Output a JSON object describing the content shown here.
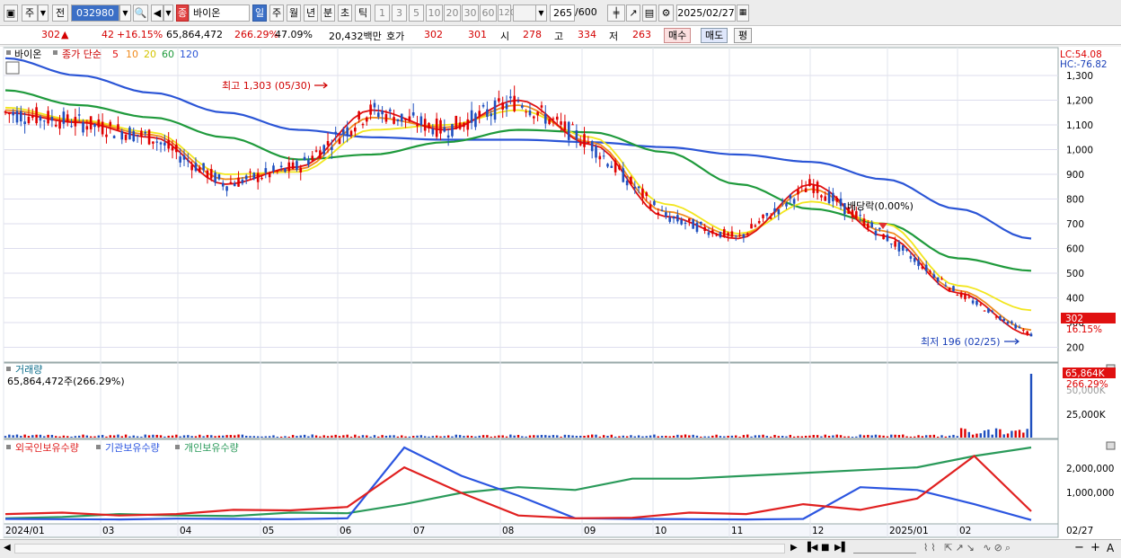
{
  "toolbar": {
    "market_type": "주",
    "prev_label": "전",
    "code": "032980",
    "name_badge": "종",
    "name": "바이온",
    "period_day": "일",
    "period_week": "주",
    "period_month": "월",
    "period_year": "년",
    "period_minute": "분",
    "period_second": "초",
    "period_tick": "틱",
    "intervals": [
      "1",
      "3",
      "5",
      "10",
      "20",
      "30",
      "60",
      "120"
    ],
    "count": "265",
    "count_total": "/600",
    "date": "2025/02/27"
  },
  "infobar": {
    "price": "302",
    "change_arrow": "▲",
    "change": "42",
    "change_pct": "+16.15%",
    "volume": "65,864,472",
    "volume_ratio": "266.29%",
    "turnover": "47.09%",
    "amount": "20,432백만",
    "quote_label": "호가",
    "quote_ask": "302",
    "quote_bid": "301",
    "open_label": "시",
    "open": "278",
    "high_label": "고",
    "high": "334",
    "low_label": "저",
    "low": "263",
    "buy_label": "매수",
    "sell_label": "매도",
    "eval_label": "평"
  },
  "price_panel": {
    "name": "바이온",
    "ma_label": "종가 단순",
    "ma_periods": [
      "5",
      "10",
      "20",
      "60",
      "120"
    ],
    "lc_label": "LC:54.08",
    "hc_label": "HC:-76.82",
    "high_annotation": "최고 1,303 (05/30)",
    "low_annotation": "최저 196 (02/25)",
    "dividend_annotation": "배당락(0.00%)",
    "current_price_label": "302",
    "current_pct_label": "16.15%"
  },
  "volume_panel": {
    "title": "거래량",
    "value_label": "65,864,472주(266.29%)",
    "current_label": "65,864K",
    "current_pct": "266.29%",
    "hidden_label": "50,000K",
    "tick_label": "25,000K"
  },
  "holdings_panel": {
    "series_labels": [
      "외국인보유수량",
      "기관보유수량",
      "개인보유수량"
    ],
    "ticks": [
      "2,000,000",
      "1,000,000"
    ]
  },
  "date_axis": {
    "labels": [
      "2024/01",
      "03",
      "04",
      "05",
      "06",
      "07",
      "08",
      "09",
      "10",
      "11",
      "12",
      "2025/01",
      "02"
    ],
    "end_label": "02/27"
  },
  "colors": {
    "up": "#e00000",
    "down": "#1f4fbf",
    "ma5": "#e01010",
    "ma10": "#f08a1c",
    "ma20": "#f2e61e",
    "ma60": "#1f9a3c",
    "ma120": "#2b55d6",
    "foreign": "#e02020",
    "institution": "#2b55e0",
    "individual": "#2a9a5a"
  },
  "chart_data": {
    "type": "line",
    "title": "바이온",
    "x_range": [
      "2024/01",
      "2025/02/27"
    ],
    "ylim": [
      180,
      1380
    ],
    "price_ticks": [
      200,
      300,
      400,
      500,
      600,
      700,
      800,
      900,
      1000,
      1100,
      1200,
      1300
    ],
    "series": [
      {
        "name": "5",
        "x": [
          "2024/01",
          "2024/02",
          "2024/03",
          "2024/04",
          "2024/05",
          "2024/06",
          "2024/07",
          "2024/08",
          "2024/09",
          "2024/10",
          "2024/11",
          "2024/12",
          "2025/01",
          "2025/02",
          "2025/02/27"
        ],
        "values": [
          1150,
          1110,
          1050,
          860,
          930,
          1160,
          1080,
          1200,
          1020,
          730,
          640,
          860,
          650,
          420,
          250
        ]
      },
      {
        "name": "10",
        "x": [
          "2024/01",
          "2024/02",
          "2024/03",
          "2024/04",
          "2024/05",
          "2024/06",
          "2024/07",
          "2024/08",
          "2024/09",
          "2024/10",
          "2024/11",
          "2024/12",
          "2025/01",
          "2025/02",
          "2025/02/27"
        ],
        "values": [
          1160,
          1115,
          1060,
          880,
          920,
          1130,
          1090,
          1180,
          1030,
          750,
          650,
          840,
          670,
          430,
          270
        ]
      },
      {
        "name": "20",
        "x": [
          "2024/01",
          "2024/02",
          "2024/03",
          "2024/04",
          "2024/05",
          "2024/06",
          "2024/07",
          "2024/08",
          "2024/09",
          "2024/10",
          "2024/11",
          "2024/12",
          "2025/01",
          "2025/02",
          "2025/02/27"
        ],
        "values": [
          1170,
          1120,
          1070,
          900,
          910,
          1080,
          1100,
          1160,
          1050,
          780,
          660,
          790,
          700,
          450,
          350
        ]
      },
      {
        "name": "60",
        "x": [
          "2024/01",
          "2024/02",
          "2024/03",
          "2024/04",
          "2024/05",
          "2024/06",
          "2024/07",
          "2024/08",
          "2024/09",
          "2024/10",
          "2024/11",
          "2024/12",
          "2025/01",
          "2025/02",
          "2025/02/27"
        ],
        "values": [
          1240,
          1180,
          1130,
          1050,
          960,
          980,
          1030,
          1080,
          1070,
          990,
          860,
          760,
          700,
          560,
          510
        ]
      },
      {
        "name": "120",
        "x": [
          "2024/01",
          "2024/02",
          "2024/03",
          "2024/04",
          "2024/05",
          "2024/06",
          "2024/07",
          "2024/08",
          "2024/09",
          "2024/10",
          "2024/11",
          "2024/12",
          "2025/01",
          "2025/02",
          "2025/02/27"
        ],
        "values": [
          1370,
          1300,
          1230,
          1150,
          1080,
          1050,
          1040,
          1040,
          1030,
          1010,
          980,
          950,
          880,
          760,
          640
        ]
      }
    ],
    "annotations": [
      {
        "label": "최고 1,303 (05/30)",
        "x": "2024/05/30",
        "y": 1303
      },
      {
        "label": "최저 196 (02/25)",
        "x": "2025/02/25",
        "y": 196
      }
    ]
  }
}
